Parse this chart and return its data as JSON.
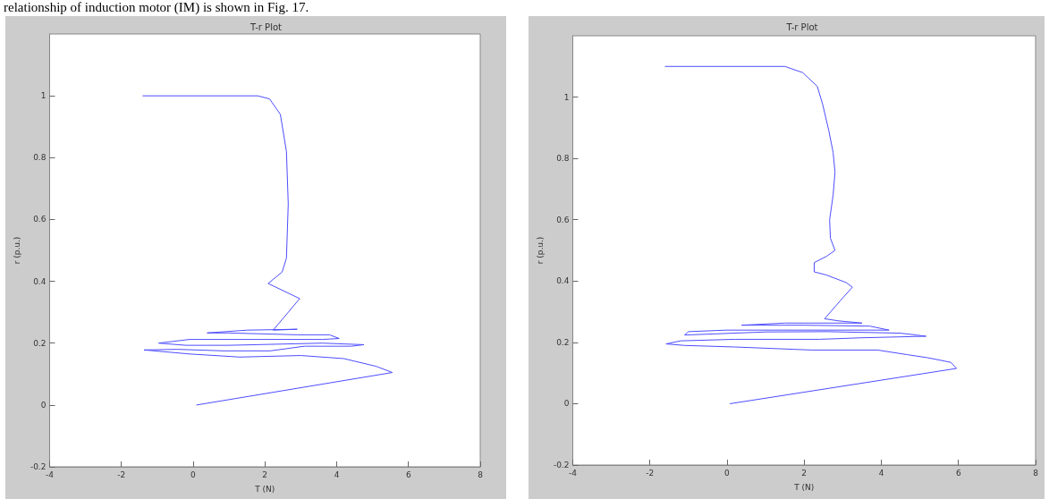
{
  "chart_data": [
    {
      "type": "line",
      "title": "T-r Plot",
      "xlabel": "T (N)",
      "ylabel": "r (p.u.)",
      "annotations": [
        "relationship of induction motor (IM) is shown in Fig. 17."
      ],
      "xlim": [
        -4,
        8
      ],
      "xticks": [
        -4,
        -2,
        0,
        2,
        4,
        6,
        8
      ],
      "ylim": [
        -0.2,
        1.2
      ],
      "yticks": [
        -0.2,
        0,
        0.2,
        0.4,
        0.6,
        0.8,
        1
      ],
      "grid": false,
      "marker": "none",
      "line_style": "solid",
      "color": "#4d4dff",
      "x": [
        0.1,
        5.55,
        5.1,
        4.2,
        3.0,
        1.3,
        -0.1,
        -1.37,
        -0.44,
        0.85,
        2.15,
        3.1,
        4.4,
        4.76,
        3.6,
        1.0,
        -0.2,
        -0.96,
        -0.1,
        3.6,
        4.07,
        3.8,
        2.9,
        0.96,
        0.39,
        1.5,
        2.9,
        2.23,
        2.97,
        2.09,
        2.48,
        2.6,
        2.65,
        2.6,
        2.43,
        2.13,
        1.8,
        -1.4
      ],
      "values": [
        0.0,
        0.105,
        0.125,
        0.15,
        0.16,
        0.155,
        0.165,
        0.178,
        0.18,
        0.175,
        0.175,
        0.19,
        0.19,
        0.195,
        0.2,
        0.193,
        0.193,
        0.2,
        0.212,
        0.212,
        0.215,
        0.227,
        0.227,
        0.233,
        0.233,
        0.242,
        0.245,
        0.242,
        0.344,
        0.393,
        0.43,
        0.475,
        0.65,
        0.82,
        0.94,
        0.99,
        1.0,
        1.0
      ]
    },
    {
      "type": "line",
      "title": "T-r Plot",
      "xlabel": "T (N)",
      "ylabel": "r (p.u.)",
      "xlim": [
        -4,
        8
      ],
      "xticks": [
        -4,
        -2,
        0,
        2,
        4,
        6,
        8
      ],
      "ylim": [
        -0.2,
        1.2
      ],
      "yticks": [
        -0.2,
        0,
        0.2,
        0.4,
        0.6,
        0.8,
        1
      ],
      "grid": false,
      "marker": "none",
      "line_style": "solid",
      "color": "#4d4dff",
      "x": [
        0.08,
        5.95,
        5.8,
        5.2,
        4.67,
        3.9,
        2.2,
        0.2,
        -1.1,
        -1.58,
        -1.2,
        0.2,
        2.4,
        3.5,
        5.16,
        4.5,
        2.6,
        1.0,
        -1.1,
        -1.0,
        0.0,
        2.6,
        4.2,
        3.7,
        2.0,
        0.38,
        1.5,
        3.5,
        2.9,
        2.53,
        2.93,
        3.25,
        3.09,
        2.57,
        2.26,
        2.26,
        2.57,
        2.8,
        2.68,
        2.66,
        2.75,
        2.8,
        2.75,
        2.64,
        2.48,
        2.34,
        1.96,
        1.5,
        -1.6
      ],
      "values": [
        0.0,
        0.115,
        0.135,
        0.15,
        0.16,
        0.175,
        0.175,
        0.185,
        0.19,
        0.195,
        0.205,
        0.21,
        0.21,
        0.215,
        0.22,
        0.23,
        0.235,
        0.234,
        0.224,
        0.235,
        0.24,
        0.24,
        0.24,
        0.253,
        0.256,
        0.256,
        0.263,
        0.263,
        0.27,
        0.277,
        0.335,
        0.38,
        0.395,
        0.42,
        0.43,
        0.46,
        0.48,
        0.5,
        0.54,
        0.6,
        0.68,
        0.755,
        0.82,
        0.89,
        0.976,
        1.035,
        1.08,
        1.1,
        1.1
      ]
    }
  ]
}
